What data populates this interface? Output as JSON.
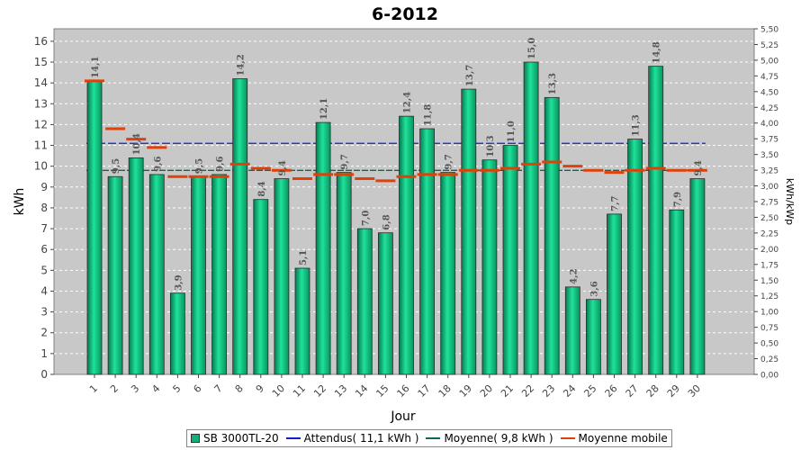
{
  "chart_data": {
    "type": "bar",
    "title": "6-2012",
    "xlabel": "Jour",
    "ylabel": "kWh",
    "y2label": "kWh/kWp",
    "ylim": [
      0,
      16.6
    ],
    "y2lim": [
      0,
      5.5
    ],
    "yticks": [
      "0",
      "1",
      "2",
      "3",
      "4",
      "5",
      "6",
      "7",
      "8",
      "9",
      "10",
      "11",
      "12",
      "13",
      "14",
      "15",
      "16"
    ],
    "y2ticks": [
      "0,00",
      "0,25",
      "0,50",
      "0,75",
      "1,00",
      "1,25",
      "1,50",
      "1,75",
      "2,00",
      "2,25",
      "2,50",
      "2,75",
      "3,00",
      "3,25",
      "3,50",
      "3,75",
      "4,00",
      "4,25",
      "4,50",
      "4,75",
      "5,00",
      "5,25",
      "5,50"
    ],
    "categories": [
      "1",
      "2",
      "3",
      "4",
      "5",
      "6",
      "7",
      "8",
      "9",
      "10",
      "11",
      "12",
      "13",
      "14",
      "15",
      "16",
      "17",
      "18",
      "19",
      "20",
      "21",
      "22",
      "23",
      "24",
      "25",
      "26",
      "27",
      "28",
      "29",
      "30"
    ],
    "series": [
      {
        "name": "SB 3000TL-20",
        "values": [
          14.1,
          9.5,
          10.4,
          9.6,
          3.9,
          9.5,
          9.6,
          14.2,
          8.4,
          9.4,
          5.1,
          12.1,
          9.7,
          7.0,
          6.8,
          12.4,
          11.8,
          9.7,
          13.7,
          10.3,
          11.0,
          15.0,
          13.3,
          4.2,
          3.6,
          7.7,
          11.3,
          14.8,
          7.9,
          9.4
        ],
        "labels": [
          "14,1",
          "9,5",
          "10,4",
          "9,6",
          "3,9",
          "9,5",
          "9,6",
          "14,2",
          "8,4",
          "9,4",
          "5,1",
          "12,1",
          "9,7",
          "7,0",
          "6,8",
          "12,4",
          "11,8",
          "9,7",
          "13,7",
          "10,3",
          "11,0",
          "15,0",
          "13,3",
          "4,2",
          "3,6",
          "7,7",
          "11,3",
          "14,8",
          "7,9",
          "9,4"
        ],
        "color": "#0fb37a"
      },
      {
        "name": "Moyenne mobile",
        "values": [
          14.1,
          11.8,
          11.3,
          10.9,
          9.5,
          9.5,
          9.5,
          10.1,
          9.9,
          9.8,
          9.4,
          9.6,
          9.6,
          9.4,
          9.3,
          9.5,
          9.6,
          9.6,
          9.8,
          9.8,
          9.9,
          10.1,
          10.2,
          10.0,
          9.8,
          9.7,
          9.8,
          9.9,
          9.8,
          9.8
        ],
        "color": "#e0400a"
      }
    ],
    "reference_lines": [
      {
        "name": "Attendus( 11,1 kWh )",
        "value": 11.1,
        "color": "#1020d0"
      },
      {
        "name": "Moyenne( 9,8 kWh )",
        "value": 9.8,
        "color": "#0a6a5a"
      }
    ],
    "legend": {
      "position": "bottom-center",
      "items": [
        {
          "label": "SB 3000TL-20",
          "color": "#0fb37a",
          "kind": "box"
        },
        {
          "label": "Attendus( 11,1 kWh )",
          "color": "#1020d0",
          "kind": "line"
        },
        {
          "label": "Moyenne( 9,8 kWh )",
          "color": "#0a6a5a",
          "kind": "line"
        },
        {
          "label": "Moyenne mobile",
          "color": "#e0400a",
          "kind": "line"
        }
      ]
    },
    "grid": true,
    "plot_background": "#c8c8c8"
  }
}
